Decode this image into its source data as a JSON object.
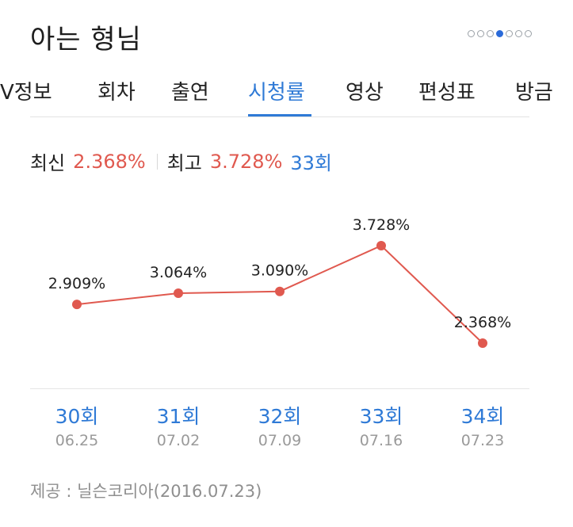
{
  "header": {
    "title": "아는 형님"
  },
  "pager": {
    "count": 7,
    "active_index": 3
  },
  "tabs": [
    {
      "label": "V정보"
    },
    {
      "label": "회차"
    },
    {
      "label": "출연"
    },
    {
      "label": "시청률"
    },
    {
      "label": "영상"
    },
    {
      "label": "편성표"
    },
    {
      "label": "방금"
    }
  ],
  "active_tab": 3,
  "summary": {
    "latest_label": "최신",
    "latest_value": "2.368%",
    "max_label": "최고",
    "max_value": "3.728%",
    "max_episode": "33회"
  },
  "chart_data": {
    "type": "line",
    "categories": [
      "30회",
      "31회",
      "32회",
      "33회",
      "34회"
    ],
    "dates": [
      "06.25",
      "07.02",
      "07.09",
      "07.16",
      "07.23"
    ],
    "values": [
      2.909,
      3.064,
      3.09,
      3.728,
      2.368
    ],
    "labels": [
      "2.909%",
      "3.064%",
      "3.090%",
      "3.728%",
      "2.368%"
    ],
    "series_color": "#e0594f",
    "title": "",
    "ylabel": ""
  },
  "footer": {
    "source": "제공 : 닐슨코리아(2016.07.23)"
  },
  "colors": {
    "accent": "#2f7ad6",
    "highlight": "#e0594f",
    "muted": "#9a9a9a"
  }
}
